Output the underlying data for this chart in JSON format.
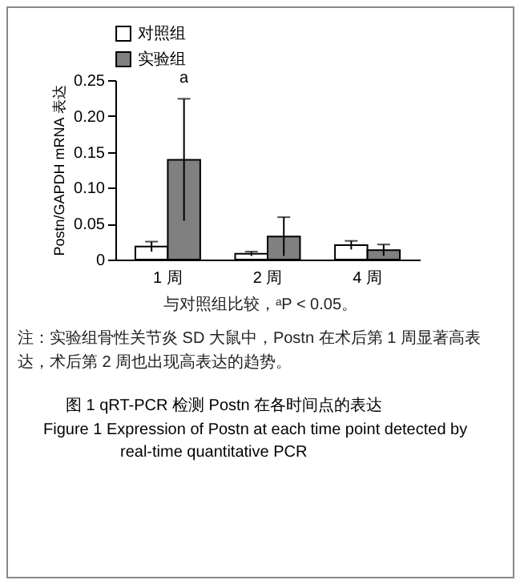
{
  "chart_data": {
    "type": "bar",
    "title": "图 1   qRT-PCR 检测 Postn 在各时间点的表达",
    "subtitle": "Figure 1   Expression of Postn at each time point detected by real-time quantitative PCR",
    "ylabel": "Postn/GAPDH mRNA 表达",
    "categories": [
      "1 周",
      "2 周",
      "4 周"
    ],
    "series": [
      {
        "name": "对照组",
        "color": "#ffffff",
        "values": [
          0.018,
          0.008,
          0.02
        ],
        "errors": [
          0.007,
          0.003,
          0.006
        ]
      },
      {
        "name": "实验组",
        "color": "#808080",
        "values": [
          0.139,
          0.032,
          0.013
        ],
        "errors": [
          0.085,
          0.027,
          0.008
        ]
      }
    ],
    "ylim": [
      0,
      0.25
    ],
    "yticks": [
      0,
      0.05,
      {
        "value": 0.1,
        "label": "0.10"
      },
      0.15,
      {
        "value": 0.2,
        "label": "0.20"
      },
      0.25
    ],
    "grid": false,
    "legend": "top",
    "annotations": [
      "a",
      "与对照组比较，ᵃP < 0.05。",
      "注：实验组骨性关节炎 SD 大鼠中，Postn 在术后第 1 周显著高表达，术后第 2 周也出现高表达的趋势。"
    ]
  }
}
